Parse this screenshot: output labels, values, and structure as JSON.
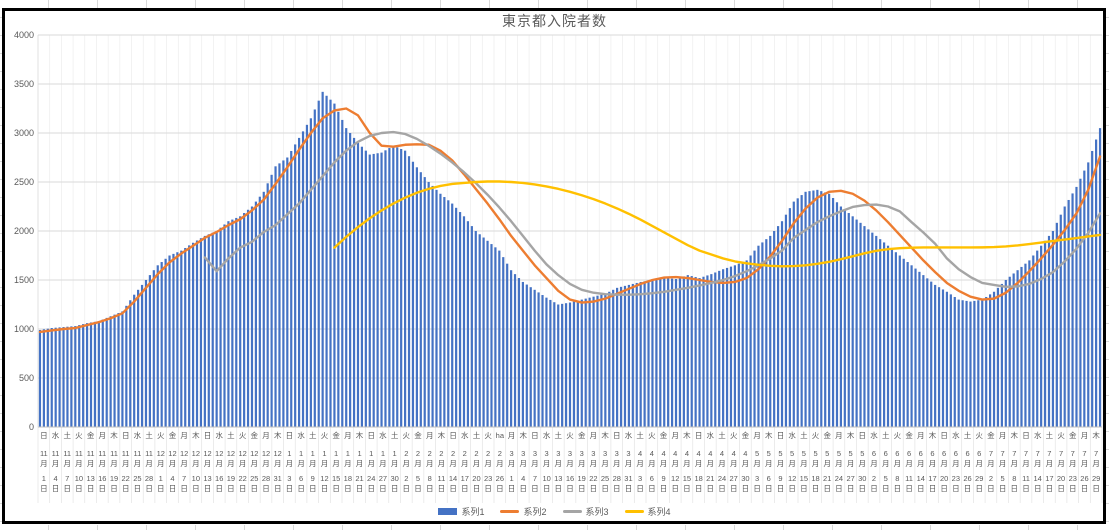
{
  "chart_data": {
    "type": "combo",
    "title": "東京都入院者数",
    "y_axis": {
      "min": 0,
      "max": 4000,
      "step": 500,
      "labels": [
        "0",
        "500",
        "1000",
        "1500",
        "2000",
        "2500",
        "3000",
        "3500",
        "4000"
      ]
    },
    "x_axis": {
      "interval_days": 3,
      "first_label": "日 11月1日",
      "last_label": "木 7月29日",
      "weekday": [
        "日",
        "水",
        "土",
        "火",
        "金",
        "月",
        "木",
        "日",
        "水",
        "土",
        "火",
        "金",
        "月",
        "木",
        "日",
        "水",
        "土",
        "火",
        "金",
        "月",
        "木",
        "日",
        "水",
        "土",
        "火",
        "金",
        "月",
        "木",
        "日",
        "水",
        "土",
        "火",
        "金",
        "月",
        "木",
        "日",
        "水",
        "土",
        "火",
        "ha",
        "月",
        "木",
        "日",
        "水",
        "土",
        "火",
        "金",
        "月",
        "木",
        "日",
        "水",
        "土",
        "火",
        "金",
        "月",
        "木",
        "日",
        "水",
        "土",
        "火",
        "金",
        "月",
        "木",
        "日",
        "水",
        "土",
        "火",
        "金",
        "月",
        "木",
        "日",
        "水",
        "土",
        "火",
        "金",
        "月",
        "木",
        "日",
        "水",
        "土",
        "火",
        "金",
        "月",
        "木",
        "日",
        "水",
        "土",
        "火",
        "金",
        "月",
        "木"
      ],
      "month": [
        11,
        11,
        11,
        11,
        11,
        11,
        11,
        11,
        11,
        11,
        12,
        12,
        12,
        12,
        12,
        12,
        12,
        12,
        12,
        12,
        12,
        1,
        1,
        1,
        1,
        1,
        1,
        1,
        1,
        1,
        1,
        2,
        2,
        2,
        2,
        2,
        2,
        2,
        2,
        2,
        3,
        3,
        3,
        3,
        3,
        3,
        3,
        3,
        3,
        3,
        3,
        4,
        4,
        4,
        4,
        4,
        4,
        4,
        4,
        4,
        4,
        5,
        5,
        5,
        5,
        5,
        5,
        5,
        5,
        5,
        5,
        6,
        6,
        6,
        6,
        6,
        6,
        6,
        6,
        6,
        6,
        7,
        7,
        7,
        7,
        7,
        7,
        7,
        7,
        7,
        7
      ],
      "day": [
        1,
        4,
        7,
        10,
        13,
        16,
        19,
        22,
        25,
        28,
        1,
        4,
        7,
        10,
        13,
        16,
        19,
        22,
        25,
        28,
        31,
        3,
        6,
        9,
        12,
        15,
        18,
        21,
        24,
        27,
        30,
        2,
        5,
        8,
        11,
        14,
        17,
        20,
        23,
        26,
        1,
        4,
        7,
        10,
        13,
        16,
        19,
        22,
        25,
        28,
        31,
        3,
        6,
        9,
        12,
        15,
        18,
        21,
        24,
        27,
        30,
        3,
        6,
        9,
        12,
        15,
        18,
        21,
        24,
        27,
        30,
        2,
        5,
        8,
        11,
        14,
        17,
        20,
        23,
        26,
        29,
        2,
        5,
        8,
        11,
        14,
        17,
        20,
        23,
        26,
        29
      ]
    },
    "series": [
      {
        "name": "系列1",
        "type": "bar",
        "color": "#4472C4",
        "values": [
          990,
          1010,
          1020,
          1030,
          1060,
          1080,
          1130,
          1180,
          1350,
          1500,
          1650,
          1750,
          1800,
          1880,
          1950,
          2000,
          2100,
          2150,
          2250,
          2400,
          2660,
          2750,
          2950,
          3150,
          3420,
          3300,
          3050,
          2900,
          2780,
          2800,
          2870,
          2820,
          2650,
          2500,
          2380,
          2280,
          2150,
          2000,
          1900,
          1800,
          1600,
          1480,
          1400,
          1320,
          1250,
          1270,
          1300,
          1330,
          1360,
          1420,
          1450,
          1480,
          1500,
          1520,
          1510,
          1550,
          1520,
          1560,
          1610,
          1650,
          1700,
          1850,
          1950,
          2100,
          2300,
          2400,
          2420,
          2380,
          2250,
          2150,
          2050,
          1950,
          1850,
          1750,
          1650,
          1550,
          1450,
          1380,
          1300,
          1280,
          1300,
          1380,
          1500,
          1600,
          1700,
          1850,
          2000,
          2250,
          2450,
          2700,
          3050
        ]
      },
      {
        "name": "系列2",
        "type": "line",
        "color": "#ED7D31",
        "values": [
          970,
          985,
          1000,
          1010,
          1040,
          1070,
          1110,
          1160,
          1280,
          1420,
          1560,
          1680,
          1770,
          1850,
          1930,
          1990,
          2060,
          2120,
          2210,
          2320,
          2480,
          2650,
          2830,
          3000,
          3150,
          3230,
          3250,
          3180,
          3000,
          2870,
          2860,
          2880,
          2885,
          2880,
          2820,
          2720,
          2580,
          2430,
          2280,
          2120,
          1950,
          1800,
          1650,
          1520,
          1390,
          1300,
          1270,
          1280,
          1310,
          1360,
          1410,
          1460,
          1500,
          1525,
          1530,
          1520,
          1500,
          1480,
          1470,
          1480,
          1520,
          1610,
          1740,
          1900,
          2080,
          2230,
          2340,
          2400,
          2410,
          2380,
          2310,
          2210,
          2090,
          1960,
          1830,
          1700,
          1580,
          1470,
          1390,
          1330,
          1300,
          1310,
          1370,
          1470,
          1590,
          1720,
          1860,
          2010,
          2180,
          2420,
          2760
        ]
      },
      {
        "name": "系列3",
        "type": "line",
        "color": "#A5A5A5",
        "values": [
          null,
          null,
          null,
          null,
          null,
          null,
          null,
          null,
          null,
          null,
          null,
          null,
          null,
          null,
          1730,
          1590,
          1720,
          1830,
          1890,
          1990,
          2060,
          2170,
          2280,
          2420,
          2560,
          2700,
          2820,
          2910,
          2970,
          3000,
          3010,
          2990,
          2940,
          2870,
          2790,
          2700,
          2600,
          2490,
          2370,
          2240,
          2100,
          1950,
          1800,
          1660,
          1550,
          1460,
          1400,
          1370,
          1355,
          1350,
          1350,
          1355,
          1365,
          1380,
          1400,
          1420,
          1445,
          1470,
          1500,
          1540,
          1590,
          1650,
          1720,
          1800,
          1930,
          2010,
          2090,
          2150,
          2200,
          2245,
          2265,
          2270,
          2250,
          2200,
          2090,
          1985,
          1870,
          1720,
          1610,
          1530,
          1470,
          1450,
          1430,
          1435,
          1460,
          1510,
          1580,
          1690,
          1820,
          1980,
          2180
        ]
      },
      {
        "name": "系列4",
        "type": "line",
        "color": "#FFC000",
        "values": [
          null,
          null,
          null,
          null,
          null,
          null,
          null,
          null,
          null,
          null,
          null,
          null,
          null,
          null,
          null,
          null,
          null,
          null,
          null,
          null,
          null,
          null,
          null,
          null,
          null,
          1830,
          1940,
          2040,
          2130,
          2210,
          2280,
          2340,
          2390,
          2430,
          2460,
          2480,
          2490,
          2500,
          2505,
          2505,
          2500,
          2490,
          2475,
          2455,
          2430,
          2400,
          2365,
          2325,
          2280,
          2230,
          2175,
          2115,
          2050,
          1985,
          1920,
          1855,
          1800,
          1760,
          1720,
          1690,
          1670,
          1655,
          1645,
          1640,
          1642,
          1650,
          1665,
          1685,
          1712,
          1742,
          1772,
          1798,
          1815,
          1825,
          1830,
          1832,
          1832,
          1832,
          1832,
          1832,
          1833,
          1836,
          1843,
          1853,
          1867,
          1882,
          1898,
          1913,
          1928,
          1944,
          1960
        ]
      }
    ],
    "sampling_note": "values read every 3 days (one per axis label); bars are daily, interpolated between samples",
    "legend_position": "bottom",
    "grid": "on",
    "colors": {
      "grid": "#D9D9D9",
      "vgrid": "#EDEDED",
      "axis": "#BFBFBF",
      "text": "#595959",
      "frame": "#000000"
    }
  }
}
